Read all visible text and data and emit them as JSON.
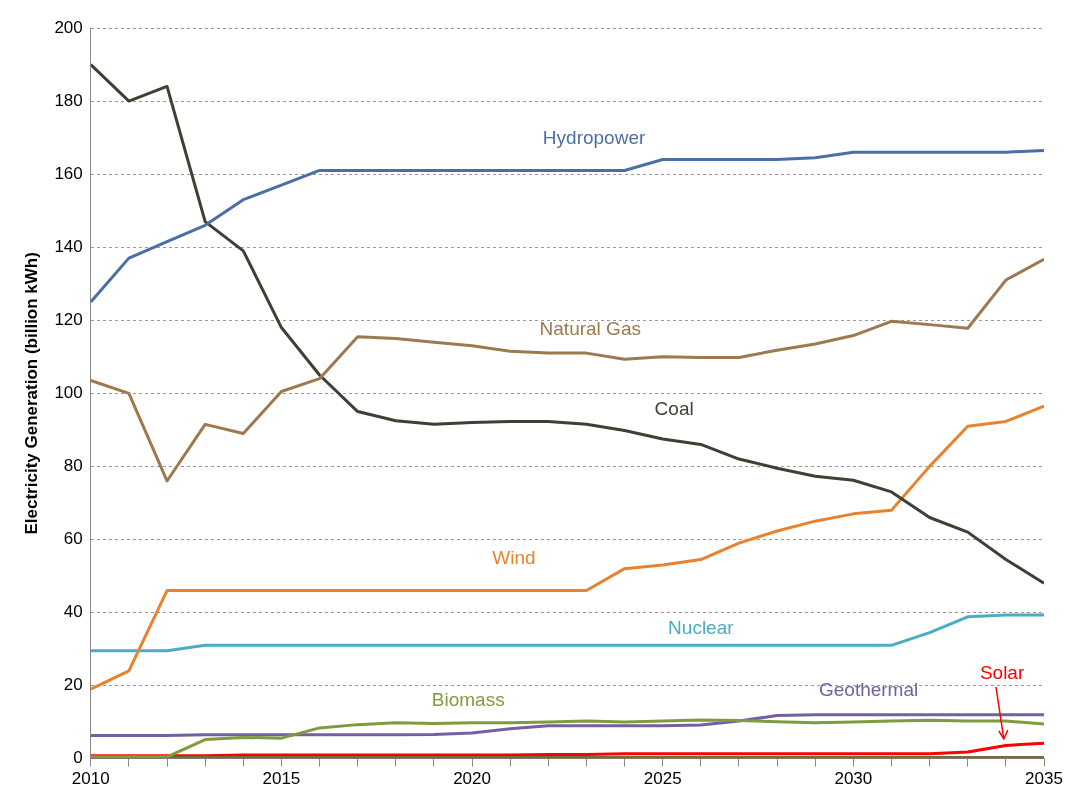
{
  "chart_data": {
    "type": "line",
    "ylabel": "Electricity Generation (billion kWh)",
    "x": [
      2010,
      2011,
      2012,
      2013,
      2014,
      2015,
      2016,
      2017,
      2018,
      2019,
      2020,
      2021,
      2022,
      2023,
      2024,
      2025,
      2026,
      2027,
      2028,
      2029,
      2030,
      2031,
      2032,
      2033,
      2034,
      2035
    ],
    "series": [
      {
        "name": "Hydropower",
        "color": "#4a6fa5",
        "values": [
          125,
          137,
          141.5,
          146,
          153,
          157,
          161,
          161,
          161,
          161,
          161,
          161,
          161,
          161,
          161,
          164,
          164,
          164,
          164,
          164.5,
          166,
          166,
          166,
          166,
          166,
          166.5
        ]
      },
      {
        "name": "Natural Gas",
        "color": "#9c7a4e",
        "values": [
          103.5,
          100,
          76,
          91.5,
          89,
          100.5,
          104,
          115.5,
          115,
          114,
          113,
          111.5,
          111,
          111,
          109.3,
          110,
          109.8,
          109.8,
          111.8,
          113.5,
          115.8,
          119.7,
          118.8,
          117.8,
          131,
          136.7
        ]
      },
      {
        "name": "Coal",
        "color": "#3f3f33",
        "values": [
          190,
          180,
          184,
          147,
          139,
          118,
          105,
          95,
          92.5,
          91.5,
          92,
          92.3,
          92.3,
          91.5,
          89.8,
          87.5,
          86,
          82,
          79.5,
          77.3,
          76.2,
          73,
          66,
          62,
          54.5,
          48
        ]
      },
      {
        "name": "Wind",
        "color": "#e8822e",
        "values": [
          19,
          24,
          46,
          46,
          46,
          46,
          46,
          46,
          46,
          46,
          46,
          46,
          46,
          46,
          52,
          53,
          54.5,
          59,
          62.3,
          65,
          67,
          68,
          80,
          91,
          92.3,
          96.5
        ]
      },
      {
        "name": "Nuclear",
        "color": "#4bacc6",
        "values": [
          29.5,
          29.5,
          29.5,
          31,
          31,
          31,
          31,
          31,
          31,
          31,
          31,
          31,
          31,
          31,
          31,
          31,
          31,
          31,
          31,
          31,
          31,
          31,
          34.5,
          38.8,
          39.3,
          39.3
        ]
      },
      {
        "name": "Biomass",
        "color": "#7f9b3e",
        "values": [
          0.5,
          0.5,
          0.5,
          5.2,
          5.8,
          5.6,
          8.4,
          9.3,
          9.8,
          9.6,
          9.8,
          9.8,
          10,
          10.3,
          10,
          10.3,
          10.6,
          10.4,
          10.1,
          9.8,
          10,
          10.3,
          10.5,
          10.3,
          10.3,
          9.5
        ]
      },
      {
        "name": "Geothermal",
        "color": "#7460a0",
        "values": [
          6.3,
          6.3,
          6.3,
          6.5,
          6.5,
          6.5,
          6.5,
          6.5,
          6.5,
          6.6,
          7,
          8.2,
          9,
          9,
          9,
          9,
          9.2,
          10.3,
          11.8,
          12,
          12,
          12,
          12,
          12,
          12,
          12
        ]
      },
      {
        "color": "#7a6a40",
        "values": [
          0.3,
          0.3,
          0.3,
          0.3,
          0.3,
          0.3,
          0.3,
          0.3,
          0.3,
          0.3,
          0.3,
          0.3,
          0.3,
          0.3,
          0.3,
          0.3,
          0.3,
          0.3,
          0.3,
          0.3,
          0.3,
          0.3,
          0.3,
          0.3,
          0.3,
          0.3
        ]
      },
      {
        "name": "Solar",
        "color": "#ff0000",
        "values": [
          0.8,
          0.8,
          0.8,
          0.8,
          1,
          1,
          1,
          1,
          1,
          1,
          1,
          1,
          1.1,
          1.1,
          1.3,
          1.3,
          1.3,
          1.3,
          1.3,
          1.3,
          1.3,
          1.3,
          1.3,
          1.8,
          3.6,
          4.2
        ]
      }
    ],
    "xlim": [
      2010,
      2035
    ],
    "xticks": [
      2010,
      {
        "value": 2011,
        "label": null
      },
      {
        "value": 2012,
        "label": null
      },
      {
        "value": 2013,
        "label": null
      },
      {
        "value": 2014,
        "label": null
      },
      2015,
      {
        "value": 2016,
        "label": null
      },
      {
        "value": 2017,
        "label": null
      },
      {
        "value": 2018,
        "label": null
      },
      {
        "value": 2019,
        "label": null
      },
      2020,
      {
        "value": 2021,
        "label": null
      },
      {
        "value": 2022,
        "label": null
      },
      {
        "value": 2023,
        "label": null
      },
      {
        "value": 2024,
        "label": null
      },
      2025,
      {
        "value": 2026,
        "label": null
      },
      {
        "value": 2027,
        "label": null
      },
      {
        "value": 2028,
        "label": null
      },
      {
        "value": 2029,
        "label": null
      },
      2030,
      {
        "value": 2031,
        "label": null
      },
      {
        "value": 2032,
        "label": null
      },
      {
        "value": 2033,
        "label": null
      },
      {
        "value": 2034,
        "label": null
      },
      2035
    ],
    "ylim": [
      0,
      200
    ],
    "yticks": [
      0,
      20,
      40,
      60,
      80,
      100,
      120,
      140,
      160,
      180,
      200
    ],
    "grid": "y",
    "legend": false,
    "marker": "none",
    "line_style": "solid"
  }
}
